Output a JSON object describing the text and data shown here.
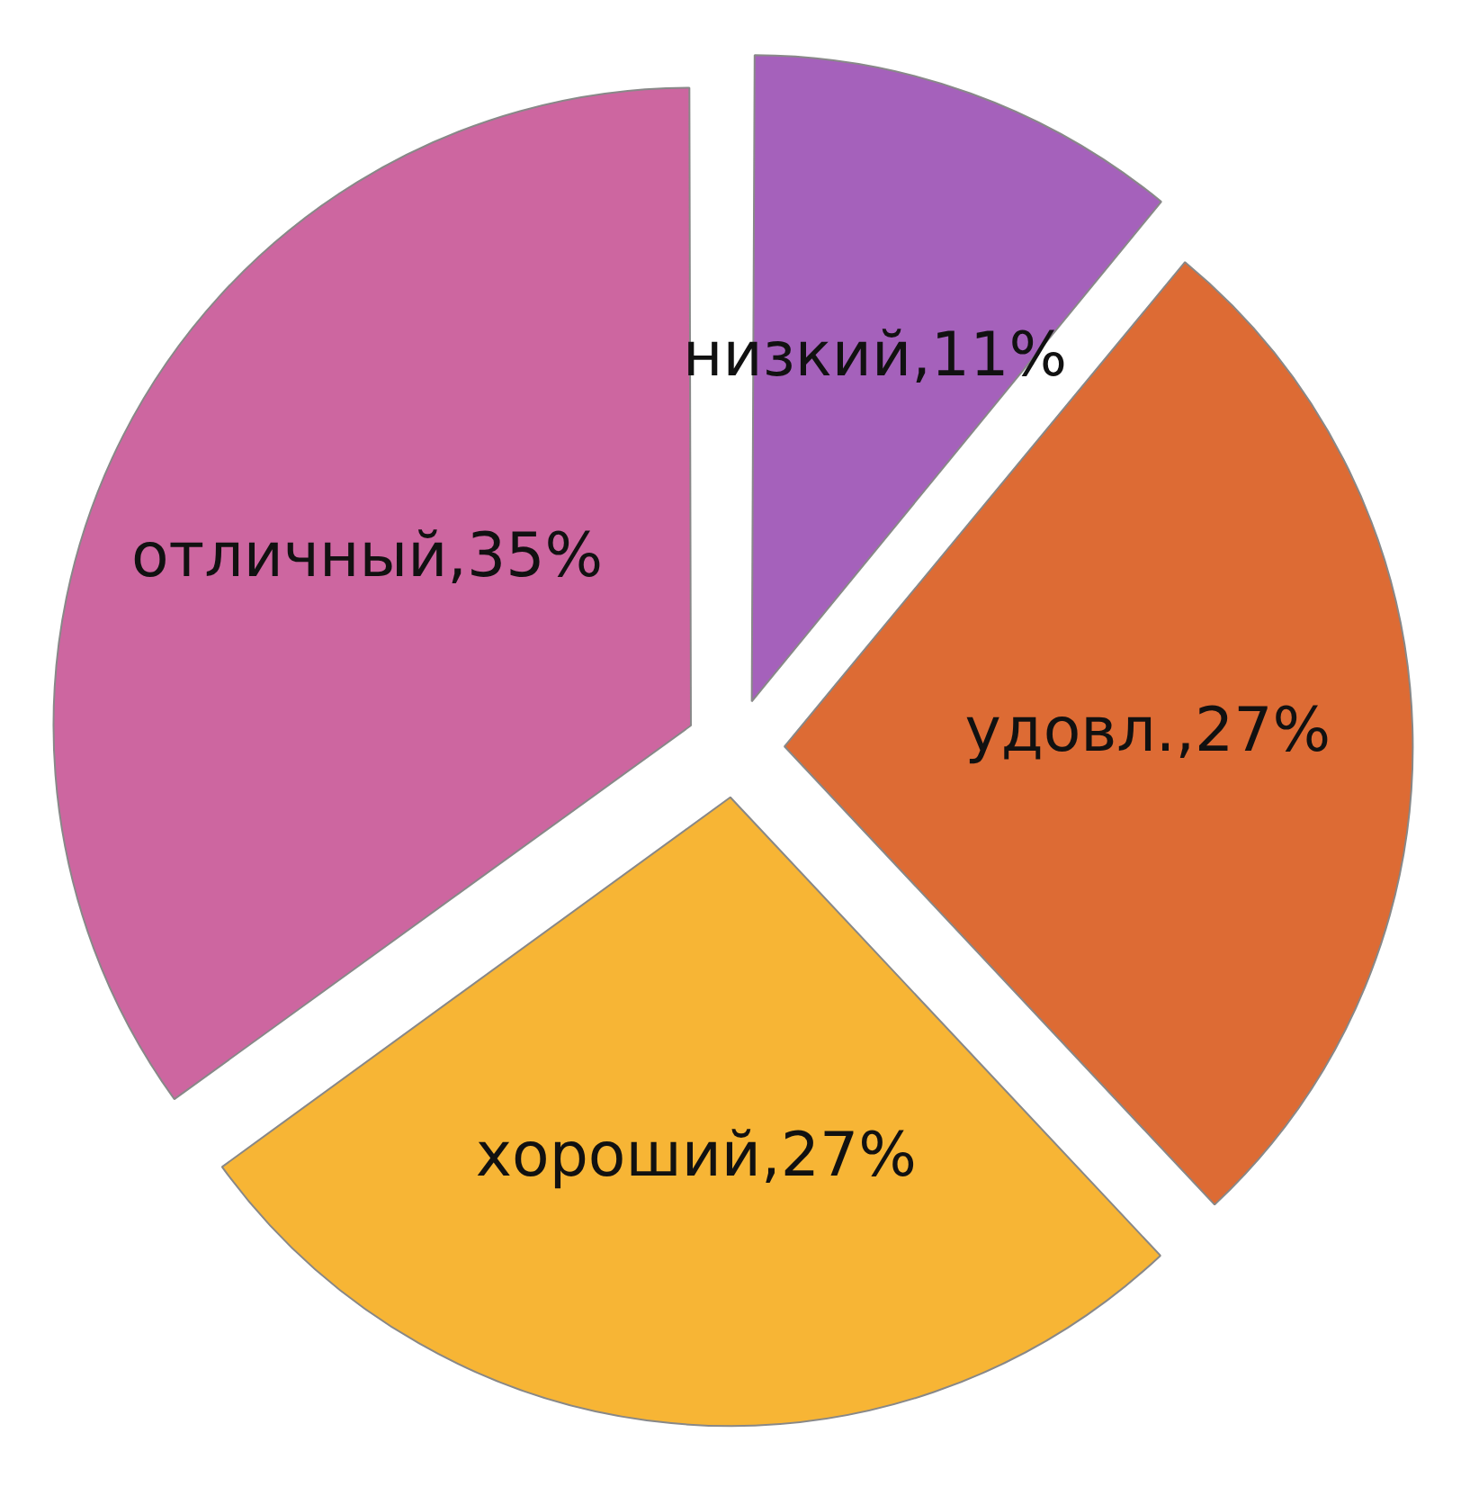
{
  "chart_data": {
    "type": "pie",
    "categories": [
      "низкий",
      "удовл.",
      "хороший",
      "отличный"
    ],
    "values": [
      11,
      27,
      27,
      35
    ],
    "value_labels": [
      "11%",
      "27%",
      "27%",
      "35%"
    ],
    "colors": [
      "#a561bb",
      "#dd6b34",
      "#f7b535",
      "#cd66a0"
    ],
    "legend": false
  }
}
